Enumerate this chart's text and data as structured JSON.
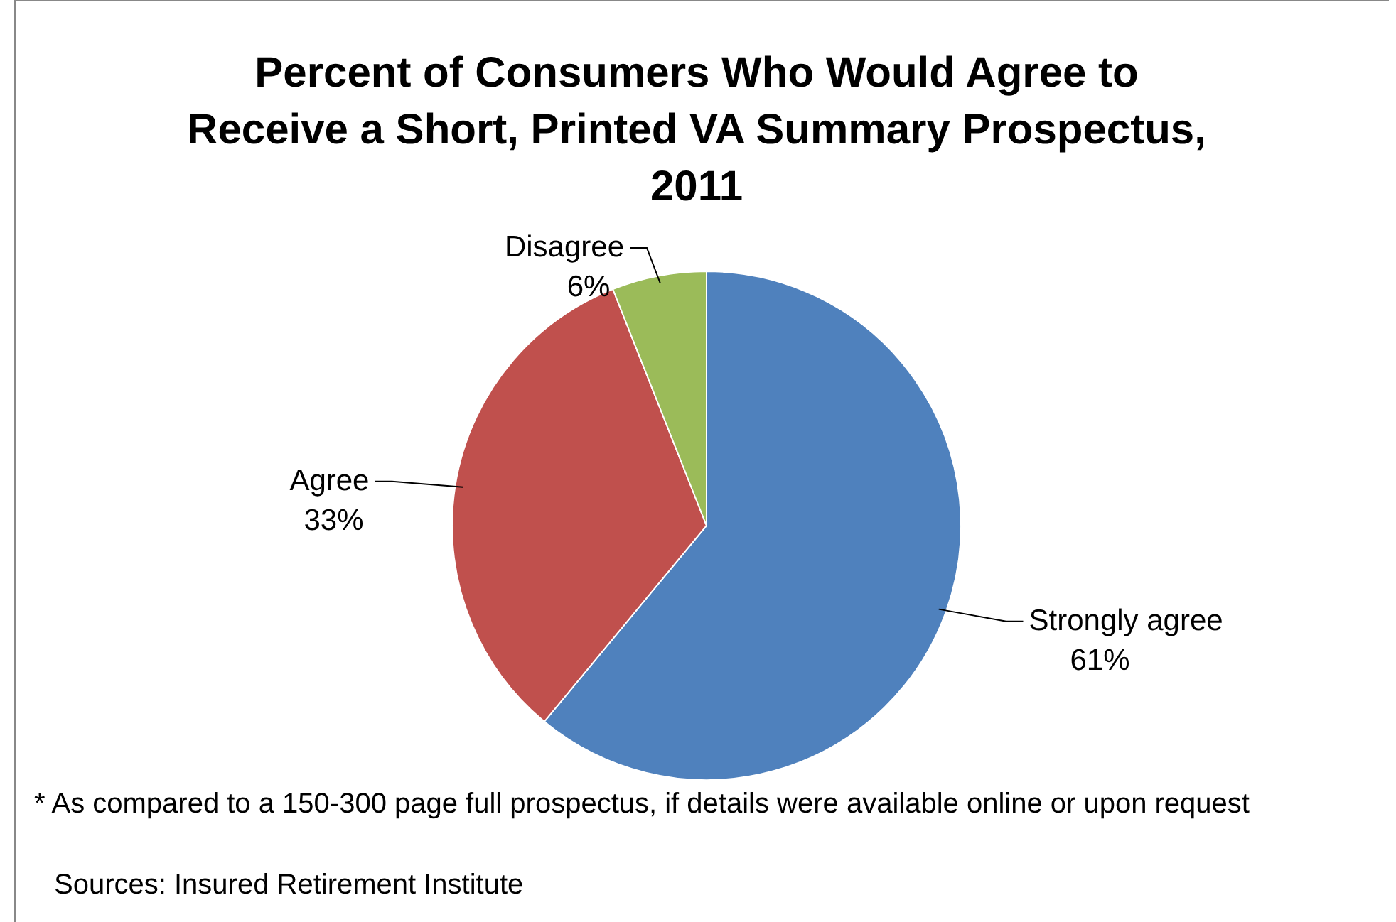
{
  "chart_data": {
    "type": "pie",
    "title": "Percent of Consumers Who Would Agree to Receive a Short, Printed VA Summary Prospectus, 2011",
    "categories": [
      "Strongly agree",
      "Agree",
      "Disagree"
    ],
    "values": [
      61,
      33,
      6
    ],
    "colors": [
      "#4f81bd",
      "#c0504d",
      "#9bbb59"
    ],
    "value_labels": [
      "61%",
      "33%",
      "6%"
    ],
    "annotations": [
      "* As compared to a 150-300 page full prospectus, if details were available online or upon request",
      "Sources: Insured Retirement Institute"
    ]
  }
}
